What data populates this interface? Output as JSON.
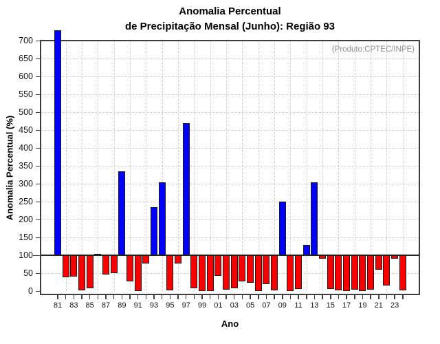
{
  "title": {
    "line1": "Anomalia Percentual",
    "line2": "de Precipitação Mensal (Junho): Região 93"
  },
  "annotation": "(Produto:CPTEC/INPE)",
  "axes": {
    "ylabel": "Anomalia Percentual (%)",
    "xlabel": "Ano"
  },
  "chart_data": {
    "type": "bar",
    "title": "Anomalia Percentual de Precipitação Mensal (Junho): Região 93",
    "xlabel": "Ano",
    "ylabel": "Anomalia Percentual (%)",
    "baseline": 100,
    "ylim": [
      0,
      700
    ],
    "ytick_step": 50,
    "grid": true,
    "legend": "none",
    "ytick_labels": [
      "0",
      "50",
      "100",
      "150",
      "200",
      "250",
      "300",
      "350",
      "400",
      "450",
      "500",
      "550",
      "600",
      "650",
      "700"
    ],
    "xtick_labels": [
      "81",
      "83",
      "85",
      "87",
      "89",
      "91",
      "93",
      "95",
      "97",
      "99",
      "01",
      "03",
      "05",
      "07",
      "09",
      "11",
      "13",
      "15",
      "17",
      "19",
      "21",
      "23"
    ],
    "years": [
      1981,
      1982,
      1983,
      1984,
      1985,
      1986,
      1987,
      1988,
      1989,
      1990,
      1991,
      1992,
      1993,
      1994,
      1995,
      1996,
      1997,
      1998,
      1999,
      2000,
      2001,
      2002,
      2003,
      2004,
      2005,
      2006,
      2007,
      2008,
      2009,
      2010,
      2011,
      2012,
      2013,
      2014,
      2015,
      2016,
      2017,
      2018,
      2019,
      2020,
      2021,
      2022,
      2023,
      2024
    ],
    "values": [
      730,
      39,
      41,
      2,
      8,
      105,
      46,
      50,
      335,
      27,
      1,
      77,
      235,
      305,
      3,
      77,
      470,
      9,
      1,
      1,
      42,
      4,
      9,
      28,
      24,
      1,
      20,
      2,
      250,
      1,
      6,
      130,
      305,
      90,
      6,
      2,
      1,
      4,
      1,
      4,
      60,
      15,
      90,
      3
    ],
    "colors": {
      "above_baseline": "#0000fa",
      "below_baseline": "#f80000",
      "bar_outline": "#1c1c1c",
      "grid": "#c9c9c9",
      "frame": "#3d3d3d",
      "baseline_line": "#222222",
      "annotation": "#8f8f8f",
      "text": "#111111"
    }
  }
}
